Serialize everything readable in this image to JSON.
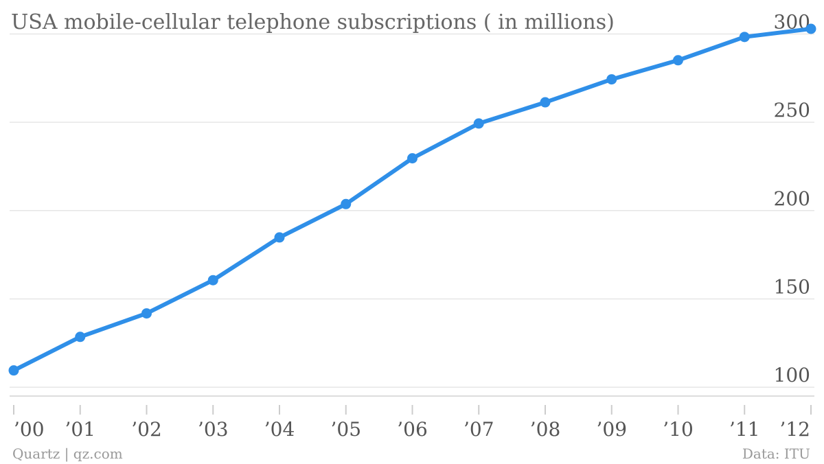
{
  "chart_data": {
    "type": "line",
    "title": "USA mobile-cellular telephone subscriptions ( in millions)",
    "xlabel": "",
    "ylabel": "",
    "categories": [
      "’00",
      "’01",
      "’02",
      "’03",
      "’04",
      "’05",
      "’06",
      "’07",
      "’08",
      "’09",
      "’10",
      "’11",
      "’12"
    ],
    "series": [
      {
        "values": [
          109.5,
          128.5,
          141.8,
          160.6,
          184.8,
          203.7,
          229.6,
          249.3,
          261.3,
          274.3,
          285.1,
          298.3,
          302.9
        ]
      }
    ],
    "yticks": [
      100,
      150,
      200,
      250,
      300
    ],
    "ylim": [
      95,
      302.9
    ],
    "y_axis_position": "right",
    "grid": true,
    "legend": "none",
    "series_color": "#2f8fe8",
    "footer_left": "Quartz | qz.com",
    "footer_right": "Data: ITU"
  }
}
